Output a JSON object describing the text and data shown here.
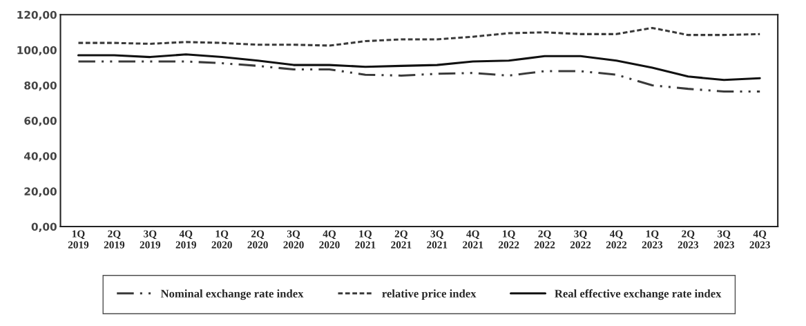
{
  "chart_data": {
    "type": "line",
    "categories": [
      "1Q\n2019",
      "2Q\n2019",
      "3Q\n2019",
      "4Q\n2019",
      "1Q\n2020",
      "2Q\n2020",
      "3Q\n2020",
      "4Q\n2020",
      "1Q\n2021",
      "2Q\n2021",
      "3Q\n2021",
      "4Q\n2021",
      "1Q\n2022",
      "2Q\n2022",
      "3Q\n2022",
      "4Q\n2022",
      "1Q\n2023",
      "2Q\n2023",
      "3Q\n2023",
      "4Q\n2023"
    ],
    "series": [
      {
        "name": "Nominal exchange rate index",
        "color": "#3a3a3a",
        "line_style": "dashdot",
        "values": [
          93.5,
          93.5,
          93.5,
          93.5,
          92.5,
          91,
          89,
          89,
          86,
          85.5,
          86.5,
          87,
          85.5,
          88,
          88,
          86,
          80,
          78,
          76.5,
          76.5
        ]
      },
      {
        "name": "relative price index",
        "color": "#3a3a3a",
        "line_style": "dotted",
        "values": [
          104,
          104,
          103.5,
          104.5,
          104,
          103,
          103,
          102.5,
          105,
          106,
          106,
          107.5,
          109.5,
          110,
          109,
          109,
          112.5,
          108.5,
          108.5,
          109
        ]
      },
      {
        "name": "Real effective exchange rate index",
        "color": "#111111",
        "line_style": "solid",
        "values": [
          97,
          97,
          96,
          97.5,
          96,
          94,
          91.5,
          91.5,
          90.5,
          91,
          91.5,
          93.5,
          94,
          96.5,
          96.5,
          94,
          90,
          85,
          83,
          84
        ]
      }
    ],
    "ylim": [
      0,
      120
    ],
    "yticks": [
      {
        "value": 0,
        "label": "0,00"
      },
      {
        "value": 20,
        "label": "20,00"
      },
      {
        "value": 40,
        "label": "40,00"
      },
      {
        "value": 60,
        "label": "60,00"
      },
      {
        "value": 80,
        "label": "80,00"
      },
      {
        "value": 100,
        "label": "100,00"
      },
      {
        "value": 120,
        "label": "120,00"
      }
    ],
    "grid": false,
    "legend": "bottom",
    "marker": "none"
  }
}
